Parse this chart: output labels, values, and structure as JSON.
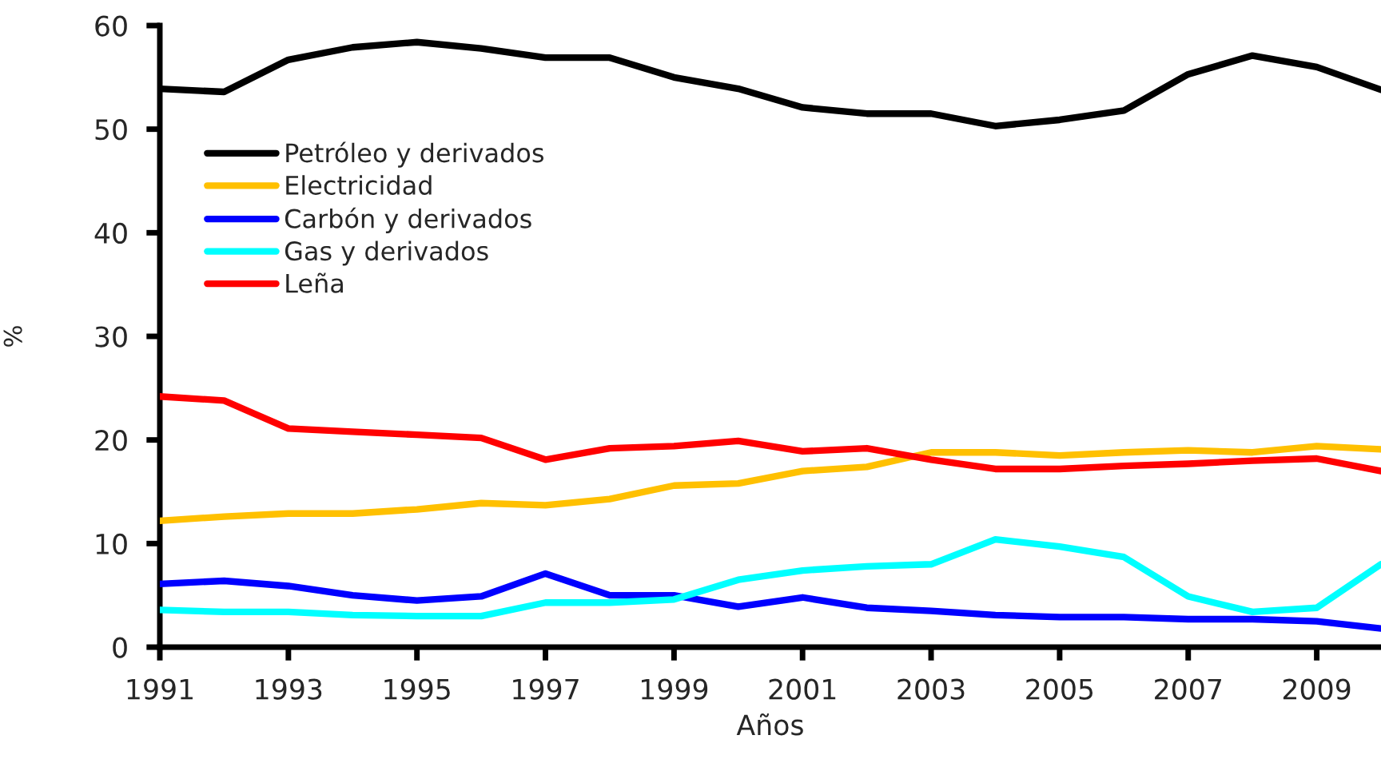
{
  "chart_data": {
    "type": "line",
    "xlabel": "Años",
    "ylabel": "%",
    "x": [
      1991,
      1992,
      1993,
      1994,
      1995,
      1996,
      1997,
      1998,
      1999,
      2000,
      2001,
      2002,
      2003,
      2004,
      2005,
      2006,
      2007,
      2008,
      2009,
      2010
    ],
    "series": [
      {
        "name": "Petróleo y derivados",
        "color": "#000000",
        "values": [
          53.9,
          53.6,
          56.7,
          57.9,
          58.4,
          57.8,
          56.9,
          56.9,
          55.0,
          53.9,
          52.1,
          51.5,
          51.5,
          50.3,
          50.9,
          51.8,
          55.3,
          57.1,
          56.0,
          53.8
        ]
      },
      {
        "name": "Electricidad",
        "color": "#ffc000",
        "values": [
          12.2,
          12.6,
          12.9,
          12.9,
          13.3,
          13.9,
          13.7,
          14.3,
          15.6,
          15.8,
          17.0,
          17.4,
          18.8,
          18.8,
          18.5,
          18.8,
          19.0,
          18.8,
          19.4,
          19.1
        ]
      },
      {
        "name": "Carbón y derivados",
        "color": "#0000ff",
        "values": [
          6.1,
          6.4,
          5.9,
          5.0,
          4.5,
          4.9,
          7.1,
          5.0,
          5.0,
          3.9,
          4.8,
          3.8,
          3.5,
          3.1,
          2.9,
          2.9,
          2.7,
          2.7,
          2.5,
          1.8
        ]
      },
      {
        "name": "Gas y derivados",
        "color": "#00ffff",
        "values": [
          3.6,
          3.4,
          3.4,
          3.1,
          3.0,
          3.0,
          4.3,
          4.3,
          4.6,
          6.5,
          7.4,
          7.8,
          8.0,
          10.4,
          9.7,
          8.7,
          4.9,
          3.4,
          3.8,
          8.0
        ]
      },
      {
        "name": "Leña",
        "color": "#ff0000",
        "values": [
          24.2,
          23.8,
          21.1,
          20.8,
          20.5,
          20.2,
          18.1,
          19.2,
          19.4,
          19.9,
          18.9,
          19.2,
          18.1,
          17.2,
          17.2,
          17.5,
          17.7,
          18.0,
          18.2,
          17.0
        ]
      }
    ],
    "xlim": [
      1991,
      2010
    ],
    "ylim": [
      0,
      60
    ],
    "xticks": [
      1991,
      1993,
      1995,
      1997,
      1999,
      2001,
      2003,
      2005,
      2007,
      2009
    ],
    "yticks": [
      0,
      10,
      20,
      30,
      40,
      50,
      60
    ],
    "grid": false,
    "legend": "top left",
    "marker": "none",
    "line_style": "solid"
  }
}
